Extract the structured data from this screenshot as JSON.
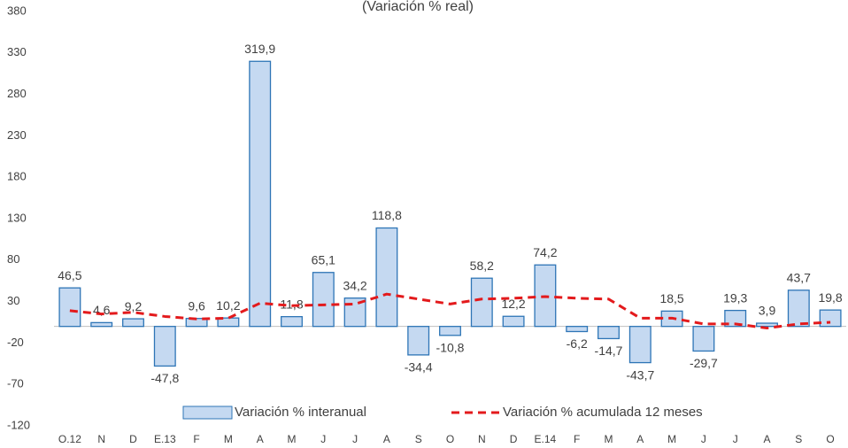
{
  "chart_data": {
    "type": "bar",
    "title": "(Variación % real)",
    "categories": [
      "O.12",
      "N",
      "D",
      "E.13",
      "F",
      "M",
      "A",
      "M",
      "J",
      "J",
      "A",
      "S",
      "O",
      "N",
      "D",
      "E.14",
      "F",
      "M",
      "A",
      "M",
      "J",
      "J",
      "A",
      "S",
      "O"
    ],
    "series": [
      {
        "name": "Variación % interanual",
        "type": "bar",
        "color": "#c5d9f1",
        "stroke": "#2e75b6",
        "values": [
          46.5,
          4.6,
          9.2,
          -47.8,
          9.6,
          10.2,
          319.9,
          11.8,
          65.1,
          34.2,
          118.8,
          -34.4,
          -10.8,
          58.2,
          12.2,
          74.2,
          -6.2,
          -14.7,
          -43.7,
          18.5,
          -29.7,
          19.3,
          3.9,
          43.7,
          19.8
        ],
        "value_labels": [
          "46,5",
          "4,6",
          "9,2",
          "-47,8",
          "9,6",
          "10,2",
          "319,9",
          "11,8",
          "65,1",
          "34,2",
          "118,8",
          "-34,4",
          "-10,8",
          "58,2",
          "12,2",
          "74,2",
          "-6,2",
          "-14,7",
          "-43,7",
          "18,5",
          "-29,7",
          "19,3",
          "3,9",
          "43,7",
          "19,8"
        ]
      },
      {
        "name": "Variación % acumulada 12 meses",
        "type": "line",
        "color": "#e31a1c",
        "values": [
          19,
          15,
          17,
          12,
          9,
          10,
          28,
          25,
          26,
          27,
          39,
          33,
          27,
          33,
          34,
          36,
          34,
          33,
          10,
          10,
          3,
          3,
          -2,
          3,
          5
        ]
      }
    ],
    "ylim": [
      -120,
      380
    ],
    "yticks": [
      -120,
      -70,
      -20,
      30,
      80,
      130,
      180,
      230,
      280,
      330,
      380
    ],
    "legend": "bottom"
  }
}
